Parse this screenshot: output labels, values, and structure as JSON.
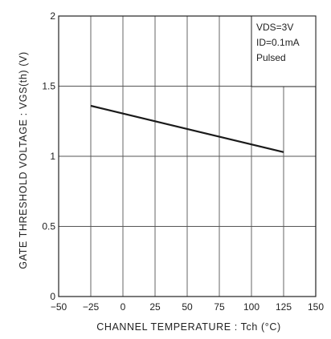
{
  "chart_data": {
    "type": "line",
    "title": "",
    "xlabel": "CHANNEL  TEMPERATURE : Tch  (°C)",
    "ylabel": "GATE  THRESHOLD  VOLTAGE : VGS(th)  (V)",
    "xlim": [
      -50,
      150
    ],
    "ylim": [
      0,
      2
    ],
    "x_ticks": [
      "−50",
      "−25",
      "0",
      "25",
      "50",
      "75",
      "100",
      "125",
      "150"
    ],
    "y_ticks": [
      "0",
      "0.5",
      "1",
      "1.5",
      "2"
    ],
    "grid": true,
    "conditions": [
      "VDS=3V",
      "ID=0.1mA",
      "Pulsed"
    ],
    "conditions_position": "top-right",
    "series": [
      {
        "x": [
          -25,
          125
        ],
        "y": [
          1.36,
          1.03
        ]
      }
    ],
    "colors": {
      "line": "#1a1a1a",
      "grid": "#555555",
      "frame": "#222222"
    }
  }
}
